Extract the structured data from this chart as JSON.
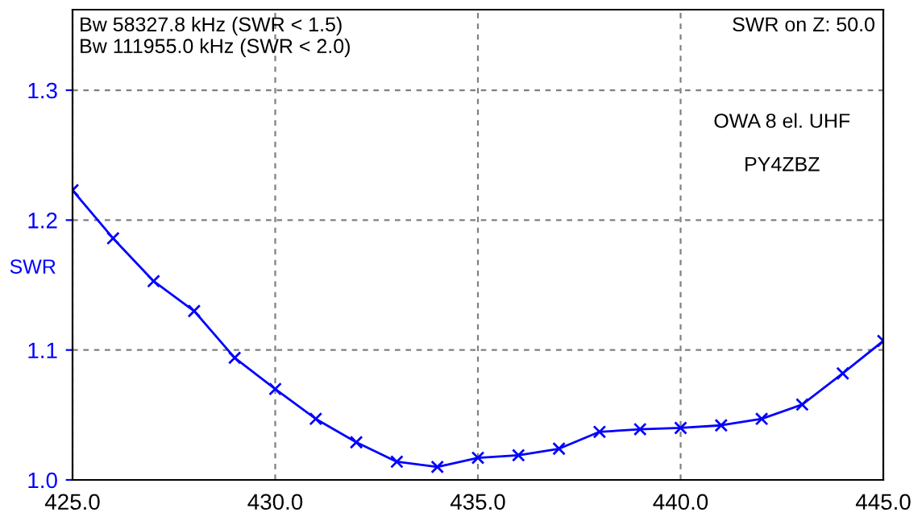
{
  "chart_data": {
    "type": "line",
    "ylabel": "SWR",
    "x": [
      425,
      426,
      427,
      428,
      429,
      430,
      431,
      432,
      433,
      434,
      435,
      436,
      437,
      438,
      439,
      440,
      441,
      442,
      443,
      444,
      445
    ],
    "series": [
      {
        "color": "#0000ff",
        "values": [
          1.223,
          1.186,
          1.153,
          1.13,
          1.094,
          1.07,
          1.047,
          1.029,
          1.014,
          1.01,
          1.017,
          1.019,
          1.024,
          1.037,
          1.039,
          1.04,
          1.042,
          1.047,
          1.058,
          1.082,
          1.107
        ]
      }
    ],
    "xlim": [
      425,
      445
    ],
    "ylim": [
      1.0,
      1.362
    ],
    "xticks": [
      {
        "value": 425,
        "label": "425.0"
      },
      {
        "value": 430,
        "label": "430.0"
      },
      {
        "value": 435,
        "label": "435.0"
      },
      {
        "value": 440,
        "label": "440.0"
      },
      {
        "value": 445,
        "label": "445.0"
      }
    ],
    "yticks": [
      {
        "value": 1.0,
        "label": "1.0"
      },
      {
        "value": 1.1,
        "label": "1.1"
      },
      {
        "value": 1.2,
        "label": "1.2"
      },
      {
        "value": 1.3,
        "label": "1.3"
      }
    ],
    "grid": true,
    "marker": "cross",
    "line_style": "solid",
    "annotations": [
      "Bw 58327.8 kHz (SWR < 1.5)\nBw 111955.0 kHz (SWR < 2.0)",
      "SWR on Z: 50.0",
      "OWA 8 el. UHF\n\nPY4ZBZ"
    ]
  }
}
